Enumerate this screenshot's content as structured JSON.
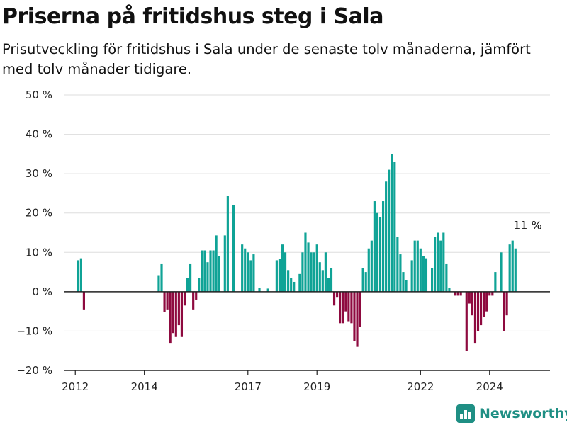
{
  "title": "Priserna på fritidshus steg i Sala",
  "subtitle": "Prisutveckling för fritidshus i Sala under de senaste tolv månaderna, jämfört med tolv månader tidigare.",
  "brand": {
    "name": "Newsworthy",
    "logo_icon": "bar-chart-logo-icon"
  },
  "colors": {
    "positive": "#0fa396",
    "negative": "#8e0a3f",
    "grid": "#dddddd",
    "axis": "#222222"
  },
  "chart_data": {
    "type": "bar",
    "title": "Priserna på fritidshus steg i Sala",
    "xlabel": "",
    "ylabel": "",
    "unit": "%",
    "ylim": [
      -20,
      50
    ],
    "yticks": [
      -20,
      -10,
      0,
      10,
      20,
      30,
      40,
      50
    ],
    "ytick_labels": [
      "−20 %",
      "−10 %",
      "0 %",
      "10 %",
      "20 %",
      "30 %",
      "40 %",
      "50 %"
    ],
    "xlim": [
      "2011-09",
      "2025-10"
    ],
    "xticks": [
      "2012-01",
      "2014-01",
      "2017-01",
      "2019-01",
      "2022-01",
      "2024-01"
    ],
    "xtick_labels": [
      "2012",
      "2014",
      "2017",
      "2019",
      "2022",
      "2024"
    ],
    "grid": true,
    "annotation": {
      "x": "2025-01",
      "y": 13,
      "text": "11 %"
    },
    "points": [
      {
        "x": "2012-02",
        "y": 8.0
      },
      {
        "x": "2012-03",
        "y": 8.5
      },
      {
        "x": "2012-04",
        "y": -4.5
      },
      {
        "x": "2014-06",
        "y": 4.2
      },
      {
        "x": "2014-07",
        "y": 7.0
      },
      {
        "x": "2014-08",
        "y": -5.2
      },
      {
        "x": "2014-09",
        "y": -4.5
      },
      {
        "x": "2014-10",
        "y": -13.0
      },
      {
        "x": "2014-11",
        "y": -10.5
      },
      {
        "x": "2014-12",
        "y": -11.5
      },
      {
        "x": "2015-01",
        "y": -8.5
      },
      {
        "x": "2015-02",
        "y": -11.5
      },
      {
        "x": "2015-03",
        "y": -3.5
      },
      {
        "x": "2015-04",
        "y": 3.5
      },
      {
        "x": "2015-05",
        "y": 7.0
      },
      {
        "x": "2015-06",
        "y": -4.5
      },
      {
        "x": "2015-07",
        "y": -2.0
      },
      {
        "x": "2015-08",
        "y": 3.5
      },
      {
        "x": "2015-09",
        "y": 10.5
      },
      {
        "x": "2015-10",
        "y": 10.5
      },
      {
        "x": "2015-11",
        "y": 7.5
      },
      {
        "x": "2015-12",
        "y": 10.5
      },
      {
        "x": "2016-01",
        "y": 10.5
      },
      {
        "x": "2016-02",
        "y": 14.3
      },
      {
        "x": "2016-03",
        "y": 9.0
      },
      {
        "x": "2016-05",
        "y": 14.3
      },
      {
        "x": "2016-06",
        "y": 24.3
      },
      {
        "x": "2016-08",
        "y": 22.0
      },
      {
        "x": "2016-11",
        "y": 12.0
      },
      {
        "x": "2016-12",
        "y": 11.0
      },
      {
        "x": "2017-01",
        "y": 10.0
      },
      {
        "x": "2017-02",
        "y": 8.0
      },
      {
        "x": "2017-03",
        "y": 9.5
      },
      {
        "x": "2017-05",
        "y": 1.0
      },
      {
        "x": "2017-08",
        "y": 0.8
      },
      {
        "x": "2017-11",
        "y": 8.0
      },
      {
        "x": "2017-12",
        "y": 8.3
      },
      {
        "x": "2018-01",
        "y": 12.0
      },
      {
        "x": "2018-02",
        "y": 10.0
      },
      {
        "x": "2018-03",
        "y": 5.5
      },
      {
        "x": "2018-04",
        "y": 3.5
      },
      {
        "x": "2018-05",
        "y": 2.5
      },
      {
        "x": "2018-07",
        "y": 4.5
      },
      {
        "x": "2018-08",
        "y": 10.0
      },
      {
        "x": "2018-09",
        "y": 15.0
      },
      {
        "x": "2018-10",
        "y": 12.5
      },
      {
        "x": "2018-11",
        "y": 10.0
      },
      {
        "x": "2018-12",
        "y": 10.0
      },
      {
        "x": "2019-01",
        "y": 12.0
      },
      {
        "x": "2019-02",
        "y": 7.5
      },
      {
        "x": "2019-03",
        "y": 5.5
      },
      {
        "x": "2019-04",
        "y": 10.0
      },
      {
        "x": "2019-05",
        "y": 3.5
      },
      {
        "x": "2019-06",
        "y": 6.0
      },
      {
        "x": "2019-07",
        "y": -3.5
      },
      {
        "x": "2019-08",
        "y": -1.5
      },
      {
        "x": "2019-09",
        "y": -8.0
      },
      {
        "x": "2019-10",
        "y": -8.0
      },
      {
        "x": "2019-11",
        "y": -5.0
      },
      {
        "x": "2019-12",
        "y": -7.5
      },
      {
        "x": "2020-01",
        "y": -8.0
      },
      {
        "x": "2020-02",
        "y": -12.5
      },
      {
        "x": "2020-03",
        "y": -14.0
      },
      {
        "x": "2020-04",
        "y": -9.0
      },
      {
        "x": "2020-05",
        "y": 6.0
      },
      {
        "x": "2020-06",
        "y": 5.0
      },
      {
        "x": "2020-07",
        "y": 11.0
      },
      {
        "x": "2020-08",
        "y": 13.0
      },
      {
        "x": "2020-09",
        "y": 23.0
      },
      {
        "x": "2020-10",
        "y": 20.0
      },
      {
        "x": "2020-11",
        "y": 19.0
      },
      {
        "x": "2020-12",
        "y": 23.0
      },
      {
        "x": "2021-01",
        "y": 28.0
      },
      {
        "x": "2021-02",
        "y": 31.0
      },
      {
        "x": "2021-03",
        "y": 35.0
      },
      {
        "x": "2021-04",
        "y": 33.0
      },
      {
        "x": "2021-05",
        "y": 14.0
      },
      {
        "x": "2021-06",
        "y": 9.5
      },
      {
        "x": "2021-07",
        "y": 5.0
      },
      {
        "x": "2021-08",
        "y": 3.0
      },
      {
        "x": "2021-10",
        "y": 8.0
      },
      {
        "x": "2021-11",
        "y": 13.0
      },
      {
        "x": "2021-12",
        "y": 13.0
      },
      {
        "x": "2022-01",
        "y": 11.0
      },
      {
        "x": "2022-02",
        "y": 9.0
      },
      {
        "x": "2022-03",
        "y": 8.5
      },
      {
        "x": "2022-05",
        "y": 6.0
      },
      {
        "x": "2022-06",
        "y": 14.0
      },
      {
        "x": "2022-07",
        "y": 15.0
      },
      {
        "x": "2022-08",
        "y": 13.0
      },
      {
        "x": "2022-09",
        "y": 15.0
      },
      {
        "x": "2022-10",
        "y": 7.0
      },
      {
        "x": "2022-11",
        "y": 1.0
      },
      {
        "x": "2023-01",
        "y": -1.0
      },
      {
        "x": "2023-02",
        "y": -1.0
      },
      {
        "x": "2023-03",
        "y": -1.0
      },
      {
        "x": "2023-05",
        "y": -15.0
      },
      {
        "x": "2023-06",
        "y": -3.0
      },
      {
        "x": "2023-07",
        "y": -6.0
      },
      {
        "x": "2023-08",
        "y": -13.0
      },
      {
        "x": "2023-09",
        "y": -10.0
      },
      {
        "x": "2023-10",
        "y": -8.5
      },
      {
        "x": "2023-11",
        "y": -6.5
      },
      {
        "x": "2023-12",
        "y": -5.0
      },
      {
        "x": "2024-01",
        "y": -1.0
      },
      {
        "x": "2024-02",
        "y": -1.0
      },
      {
        "x": "2024-03",
        "y": 5.0
      },
      {
        "x": "2024-05",
        "y": 10.0
      },
      {
        "x": "2024-06",
        "y": -10.0
      },
      {
        "x": "2024-07",
        "y": -6.0
      },
      {
        "x": "2024-08",
        "y": 12.0
      },
      {
        "x": "2024-09",
        "y": 13.0
      },
      {
        "x": "2024-10",
        "y": 11.0
      }
    ]
  }
}
